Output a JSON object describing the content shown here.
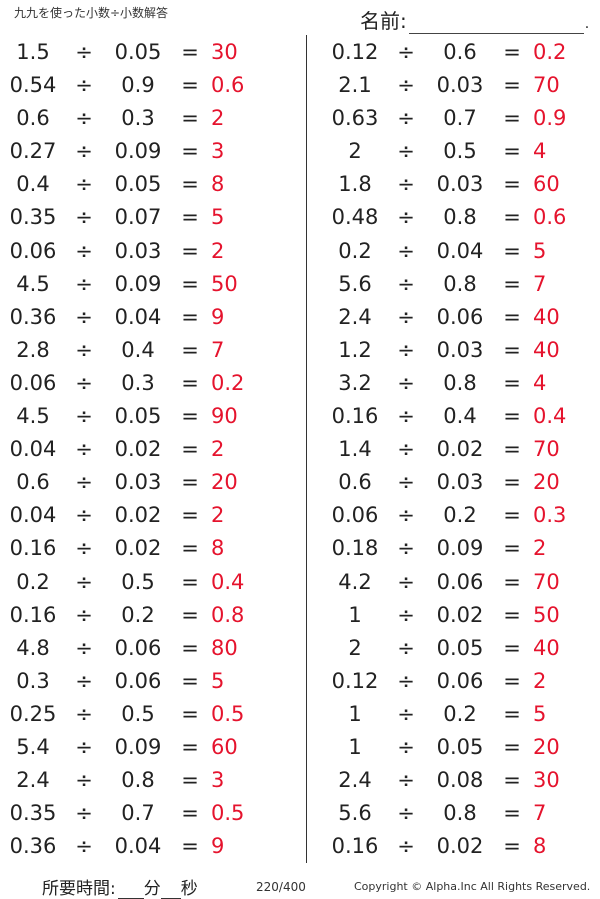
{
  "header": {
    "title": "九九を使った小数÷小数解答",
    "name_label": "名前:",
    "name_dot": "."
  },
  "operators": {
    "divide": "÷",
    "equals": "="
  },
  "left_column": [
    {
      "dividend": "1.5",
      "divisor": "0.05",
      "answer": "30"
    },
    {
      "dividend": "0.54",
      "divisor": "0.9",
      "answer": "0.6"
    },
    {
      "dividend": "0.6",
      "divisor": "0.3",
      "answer": "2"
    },
    {
      "dividend": "0.27",
      "divisor": "0.09",
      "answer": "3"
    },
    {
      "dividend": "0.4",
      "divisor": "0.05",
      "answer": "8"
    },
    {
      "dividend": "0.35",
      "divisor": "0.07",
      "answer": "5"
    },
    {
      "dividend": "0.06",
      "divisor": "0.03",
      "answer": "2"
    },
    {
      "dividend": "4.5",
      "divisor": "0.09",
      "answer": "50"
    },
    {
      "dividend": "0.36",
      "divisor": "0.04",
      "answer": "9"
    },
    {
      "dividend": "2.8",
      "divisor": "0.4",
      "answer": "7"
    },
    {
      "dividend": "0.06",
      "divisor": "0.3",
      "answer": "0.2"
    },
    {
      "dividend": "4.5",
      "divisor": "0.05",
      "answer": "90"
    },
    {
      "dividend": "0.04",
      "divisor": "0.02",
      "answer": "2"
    },
    {
      "dividend": "0.6",
      "divisor": "0.03",
      "answer": "20"
    },
    {
      "dividend": "0.04",
      "divisor": "0.02",
      "answer": "2"
    },
    {
      "dividend": "0.16",
      "divisor": "0.02",
      "answer": "8"
    },
    {
      "dividend": "0.2",
      "divisor": "0.5",
      "answer": "0.4"
    },
    {
      "dividend": "0.16",
      "divisor": "0.2",
      "answer": "0.8"
    },
    {
      "dividend": "4.8",
      "divisor": "0.06",
      "answer": "80"
    },
    {
      "dividend": "0.3",
      "divisor": "0.06",
      "answer": "5"
    },
    {
      "dividend": "0.25",
      "divisor": "0.5",
      "answer": "0.5"
    },
    {
      "dividend": "5.4",
      "divisor": "0.09",
      "answer": "60"
    },
    {
      "dividend": "2.4",
      "divisor": "0.8",
      "answer": "3"
    },
    {
      "dividend": "0.35",
      "divisor": "0.7",
      "answer": "0.5"
    },
    {
      "dividend": "0.36",
      "divisor": "0.04",
      "answer": "9"
    }
  ],
  "right_column": [
    {
      "dividend": "0.12",
      "divisor": "0.6",
      "answer": "0.2"
    },
    {
      "dividend": "2.1",
      "divisor": "0.03",
      "answer": "70"
    },
    {
      "dividend": "0.63",
      "divisor": "0.7",
      "answer": "0.9"
    },
    {
      "dividend": "2",
      "divisor": "0.5",
      "answer": "4"
    },
    {
      "dividend": "1.8",
      "divisor": "0.03",
      "answer": "60"
    },
    {
      "dividend": "0.48",
      "divisor": "0.8",
      "answer": "0.6"
    },
    {
      "dividend": "0.2",
      "divisor": "0.04",
      "answer": "5"
    },
    {
      "dividend": "5.6",
      "divisor": "0.8",
      "answer": "7"
    },
    {
      "dividend": "2.4",
      "divisor": "0.06",
      "answer": "40"
    },
    {
      "dividend": "1.2",
      "divisor": "0.03",
      "answer": "40"
    },
    {
      "dividend": "3.2",
      "divisor": "0.8",
      "answer": "4"
    },
    {
      "dividend": "0.16",
      "divisor": "0.4",
      "answer": "0.4"
    },
    {
      "dividend": "1.4",
      "divisor": "0.02",
      "answer": "70"
    },
    {
      "dividend": "0.6",
      "divisor": "0.03",
      "answer": "20"
    },
    {
      "dividend": "0.06",
      "divisor": "0.2",
      "answer": "0.3"
    },
    {
      "dividend": "0.18",
      "divisor": "0.09",
      "answer": "2"
    },
    {
      "dividend": "4.2",
      "divisor": "0.06",
      "answer": "70"
    },
    {
      "dividend": "1",
      "divisor": "0.02",
      "answer": "50"
    },
    {
      "dividend": "2",
      "divisor": "0.05",
      "answer": "40"
    },
    {
      "dividend": "0.12",
      "divisor": "0.06",
      "answer": "2"
    },
    {
      "dividend": "1",
      "divisor": "0.2",
      "answer": "5"
    },
    {
      "dividend": "1",
      "divisor": "0.05",
      "answer": "20"
    },
    {
      "dividend": "2.4",
      "divisor": "0.08",
      "answer": "30"
    },
    {
      "dividend": "5.6",
      "divisor": "0.8",
      "answer": "7"
    },
    {
      "dividend": "0.16",
      "divisor": "0.02",
      "answer": "8"
    }
  ],
  "footer": {
    "time_label": "所要時間:",
    "minutes_label": "分",
    "seconds_label": "秒",
    "page_count": "220/400",
    "copyright": "Copyright © Alpha.Inc All Rights Reserved."
  },
  "colors": {
    "answer": "#e5132d",
    "text": "#222222"
  }
}
